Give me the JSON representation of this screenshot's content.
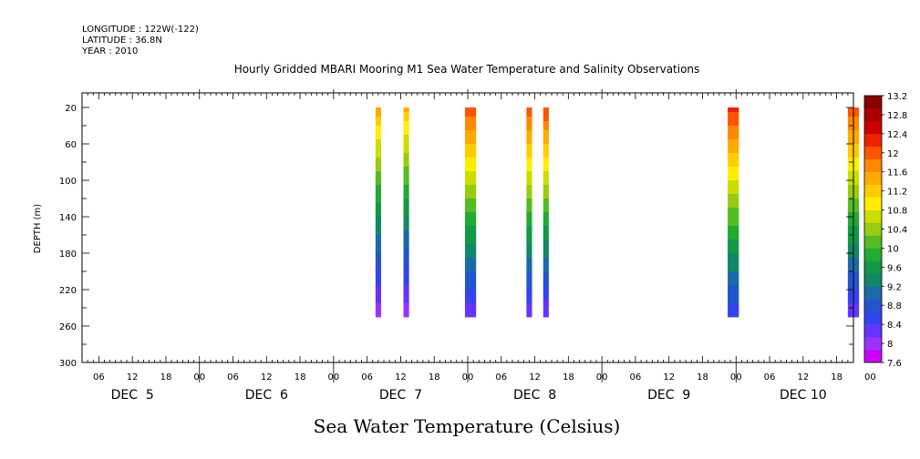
{
  "header": {
    "longitude": "LONGITUDE : 122W(-122)",
    "latitude": "LATITUDE : 36.8N",
    "year": "YEAR : 2010"
  },
  "chart_data": {
    "type": "heatmap",
    "title": "Hourly Gridded MBARI Mooring M1 Sea Water Temperature and Salinity Observations",
    "xlabel": "",
    "ylabel": "DEPTH (m)",
    "bottom_label": "Sea Water Temperature (Celsius)",
    "x_start_hour": 3,
    "x_end_hour": 141,
    "x_hour_ticks": [
      {
        "h": 6,
        "label": "06"
      },
      {
        "h": 12,
        "label": "12"
      },
      {
        "h": 18,
        "label": "18"
      },
      {
        "h": 24,
        "label": "00"
      },
      {
        "h": 30,
        "label": "06"
      },
      {
        "h": 36,
        "label": "12"
      },
      {
        "h": 42,
        "label": "18"
      },
      {
        "h": 48,
        "label": "00"
      },
      {
        "h": 54,
        "label": "06"
      },
      {
        "h": 60,
        "label": "12"
      },
      {
        "h": 66,
        "label": "18"
      },
      {
        "h": 72,
        "label": "00"
      },
      {
        "h": 78,
        "label": "06"
      },
      {
        "h": 84,
        "label": "12"
      },
      {
        "h": 90,
        "label": "18"
      },
      {
        "h": 96,
        "label": "00"
      },
      {
        "h": 102,
        "label": "06"
      },
      {
        "h": 108,
        "label": "12"
      },
      {
        "h": 114,
        "label": "18"
      },
      {
        "h": 120,
        "label": "00"
      },
      {
        "h": 126,
        "label": "06"
      },
      {
        "h": 132,
        "label": "12"
      },
      {
        "h": 138,
        "label": "18"
      },
      {
        "h": 144,
        "label": "00"
      }
    ],
    "x_day_labels": [
      {
        "h": 12,
        "label": "DEC  5"
      },
      {
        "h": 36,
        "label": "DEC  6"
      },
      {
        "h": 60,
        "label": "DEC  7"
      },
      {
        "h": 84,
        "label": "DEC  8"
      },
      {
        "h": 108,
        "label": "DEC  9"
      },
      {
        "h": 132,
        "label": "DEC 10"
      }
    ],
    "ylim": [
      300,
      4
    ],
    "y_ticks": [
      20,
      60,
      100,
      140,
      180,
      220,
      260,
      300
    ],
    "depth_top": 20,
    "depth_bottom": 250,
    "colorbar": {
      "levels": [
        "7.6",
        "8",
        "8.4",
        "8.8",
        "9.2",
        "9.6",
        "10",
        "10.4",
        "10.8",
        "11.2",
        "11.6",
        "12",
        "12.4",
        "12.8",
        "13.2"
      ],
      "colors": [
        "#cc00ff",
        "#9933ff",
        "#6633ff",
        "#3344ee",
        "#2255cc",
        "#1a6aaa",
        "#118866",
        "#119944",
        "#22aa33",
        "#55bb22",
        "#99cc11",
        "#ccdd00",
        "#ffee00",
        "#ffcc00",
        "#ffaa00",
        "#ff8800",
        "#ff5500",
        "#ee2200",
        "#cc0000",
        "#aa0000",
        "#880000"
      ],
      "value_min": 7.6,
      "value_max": 13.2
    },
    "columns": [
      {
        "t0": 55.5,
        "t1": 56.5,
        "top": 11.5,
        "bottom": 7.9
      },
      {
        "t0": 60.5,
        "t1": 61.5,
        "top": 11.4,
        "bottom": 7.9
      },
      {
        "t0": 71.5,
        "t1": 73.5,
        "top": 12.1,
        "bottom": 8.2
      },
      {
        "t0": 82.5,
        "t1": 83.5,
        "top": 12.1,
        "bottom": 8.2
      },
      {
        "t0": 85.5,
        "t1": 86.5,
        "top": 12.2,
        "bottom": 8.1
      },
      {
        "t0": 118.5,
        "t1": 120.5,
        "top": 12.3,
        "bottom": 8.4
      },
      {
        "t0": 140.0,
        "t1": 142.0,
        "top": 12.1,
        "bottom": 8.2
      }
    ]
  }
}
